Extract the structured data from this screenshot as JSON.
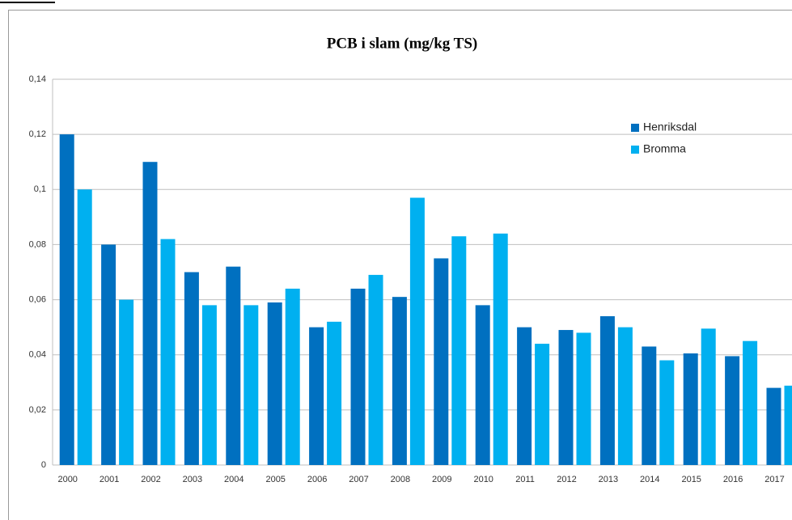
{
  "chart_data": {
    "type": "bar",
    "title": "PCB i slam (mg/kg TS)",
    "categories": [
      "2000",
      "2001",
      "2002",
      "2003",
      "2004",
      "2005",
      "2006",
      "2007",
      "2008",
      "2009",
      "2010",
      "2011",
      "2012",
      "2013",
      "2014",
      "2015",
      "2016",
      "2017"
    ],
    "series": [
      {
        "name": "Henriksdal",
        "color": "#0070c0",
        "values": [
          0.12,
          0.08,
          0.11,
          0.07,
          0.072,
          0.059,
          0.05,
          0.064,
          0.061,
          0.075,
          0.058,
          0.05,
          0.049,
          0.054,
          0.043,
          0.0405,
          0.0395,
          0.028
        ]
      },
      {
        "name": "Bromma",
        "color": "#00b0f0",
        "values": [
          0.1,
          0.06,
          0.082,
          0.058,
          0.058,
          0.064,
          0.052,
          0.069,
          0.097,
          0.083,
          0.084,
          0.044,
          0.048,
          0.05,
          0.038,
          0.0495,
          0.045,
          0.0288
        ]
      }
    ],
    "ylim": [
      0,
      0.14
    ],
    "yticks": [
      0,
      {
        "value": 0.02,
        "label": "0,02"
      },
      {
        "value": 0.04,
        "label": "0,04"
      },
      {
        "value": 0.06,
        "label": "0,06"
      },
      {
        "value": 0.08,
        "label": "0,08"
      },
      {
        "value": 0.1,
        "label": "0,1"
      },
      {
        "value": 0.12,
        "label": "0,12"
      },
      {
        "value": 0.14,
        "label": "0,14"
      }
    ],
    "grid": true,
    "legend": "top-right"
  }
}
